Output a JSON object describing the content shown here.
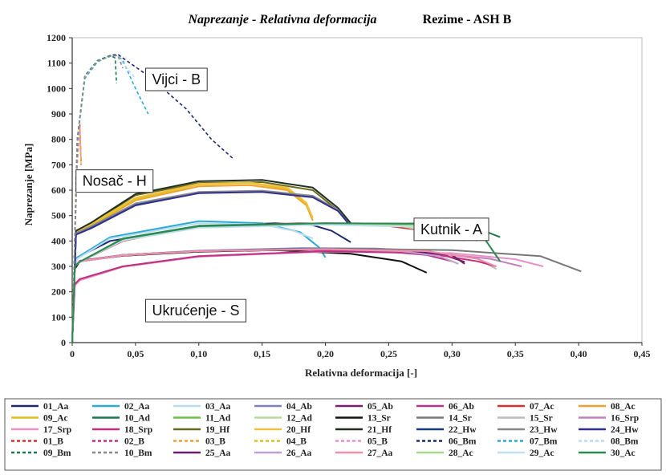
{
  "chart_data": {
    "type": "line",
    "title": "Naprezanje - Relativna deformacija",
    "subtitle": "Rezime - ASH B",
    "xlabel": "Relativna deformacija [-]",
    "ylabel": "Naprezanje [MPa]",
    "xlim": [
      0,
      0.45
    ],
    "ylim": [
      0,
      1200
    ],
    "x_ticks": [
      "0",
      "0,05",
      "0,10",
      "0,15",
      "0,20",
      "0,25",
      "0,30",
      "0,35",
      "0,40",
      "0,45"
    ],
    "y_ticks": [
      "0",
      "100",
      "200",
      "300",
      "400",
      "500",
      "600",
      "700",
      "800",
      "900",
      "1000",
      "1100",
      "1200"
    ],
    "grid": false,
    "legend_position": "bottom",
    "annotations": [
      {
        "text": "Vijci - B",
        "x": 0.058,
        "y": 1080
      },
      {
        "text": "Nosač - H",
        "x": 0.003,
        "y": 680
      },
      {
        "text": "Kutnik - A",
        "x": 0.27,
        "y": 490
      },
      {
        "text": "Ukrućenje - S",
        "x": 0.058,
        "y": 170
      }
    ],
    "series": [
      {
        "name": "01_Aa",
        "color": "#1f2a6e",
        "dash": false,
        "x": [
          0,
          0.002,
          0.004,
          0.03,
          0.1,
          0.16,
          0.19,
          0.205,
          0.22
        ],
        "y": [
          0,
          300,
          335,
          400,
          458,
          470,
          462,
          440,
          395
        ]
      },
      {
        "name": "02_Aa",
        "color": "#2aa8d8",
        "dash": false,
        "x": [
          0,
          0.002,
          0.004,
          0.03,
          0.1,
          0.15,
          0.18,
          0.195,
          0.2
        ],
        "y": [
          0,
          300,
          335,
          415,
          478,
          470,
          435,
          375,
          335
        ]
      },
      {
        "name": "03_Aa",
        "color": "#b9dcee",
        "dash": false,
        "x": [
          0,
          0.002,
          0.004,
          0.03,
          0.1,
          0.15,
          0.175,
          0.19
        ],
        "y": [
          0,
          300,
          330,
          410,
          470,
          465,
          440,
          410
        ]
      },
      {
        "name": "04_Ab",
        "color": "#7f7fc0",
        "dash": false,
        "x": [
          0,
          0.002,
          0.006,
          0.04,
          0.1,
          0.18,
          0.24,
          0.28,
          0.31
        ],
        "y": [
          0,
          300,
          320,
          345,
          362,
          372,
          370,
          360,
          338
        ]
      },
      {
        "name": "05_Ab",
        "color": "#7b1e6e",
        "dash": false,
        "x": [
          0,
          0.002,
          0.006,
          0.04,
          0.1,
          0.18,
          0.24,
          0.29,
          0.31
        ],
        "y": [
          0,
          300,
          322,
          345,
          360,
          368,
          365,
          350,
          318
        ]
      },
      {
        "name": "06_Ab",
        "color": "#b8338a",
        "dash": false,
        "x": [
          0,
          0.002,
          0.006,
          0.04,
          0.1,
          0.18,
          0.24,
          0.28,
          0.3
        ],
        "y": [
          0,
          300,
          322,
          342,
          358,
          366,
          362,
          345,
          320
        ]
      },
      {
        "name": "07_Ac",
        "color": "#d63030",
        "dash": false,
        "x": [
          0,
          0.002,
          0.006,
          0.04,
          0.1,
          0.18,
          0.24,
          0.28,
          0.305
        ],
        "y": [
          0,
          300,
          318,
          400,
          458,
          470,
          465,
          440,
          405
        ]
      },
      {
        "name": "08_Ac",
        "color": "#f0a030",
        "dash": false,
        "x": [
          0,
          0.003,
          0.015,
          0.05,
          0.1,
          0.14,
          0.17,
          0.185,
          0.19
        ],
        "y": [
          0,
          430,
          460,
          560,
          615,
          620,
          600,
          540,
          480
        ]
      },
      {
        "name": "09_Ac",
        "color": "#e0c020",
        "dash": false,
        "x": [
          0,
          0.003,
          0.015,
          0.05,
          0.1,
          0.14,
          0.17,
          0.185,
          0.19
        ],
        "y": [
          0,
          430,
          462,
          565,
          622,
          628,
          605,
          545,
          490
        ]
      },
      {
        "name": "10_Ad",
        "color": "#1a7a4a",
        "dash": false,
        "x": [
          0,
          0.002,
          0.006,
          0.04,
          0.1,
          0.2,
          0.28,
          0.32,
          0.338
        ],
        "y": [
          0,
          300,
          318,
          410,
          460,
          470,
          468,
          450,
          415
        ]
      },
      {
        "name": "11_Ad",
        "color": "#6cc24a",
        "dash": false,
        "x": [
          0,
          0.002,
          0.006,
          0.04,
          0.1,
          0.2,
          0.28,
          0.31,
          0.32
        ],
        "y": [
          0,
          300,
          318,
          408,
          458,
          468,
          462,
          440,
          400
        ]
      },
      {
        "name": "12_Ad",
        "color": "#b5d9a0",
        "dash": false,
        "x": [
          0,
          0.002,
          0.006,
          0.04,
          0.1,
          0.2,
          0.26,
          0.29,
          0.3
        ],
        "y": [
          0,
          300,
          318,
          405,
          455,
          465,
          458,
          430,
          405
        ]
      },
      {
        "name": "13_Sr",
        "color": "#111111",
        "dash": false,
        "x": [
          0,
          0.002,
          0.006,
          0.04,
          0.1,
          0.16,
          0.22,
          0.26,
          0.28
        ],
        "y": [
          0,
          290,
          320,
          342,
          358,
          364,
          350,
          320,
          275
        ]
      },
      {
        "name": "14_Sr",
        "color": "#777777",
        "dash": false,
        "x": [
          0,
          0.002,
          0.006,
          0.04,
          0.1,
          0.2,
          0.3,
          0.37,
          0.402
        ],
        "y": [
          0,
          300,
          320,
          345,
          360,
          370,
          364,
          340,
          280
        ]
      },
      {
        "name": "15_Sr",
        "color": "#bbbbbb",
        "dash": false,
        "x": [
          0,
          0.002,
          0.006,
          0.04,
          0.1,
          0.2,
          0.28,
          0.32,
          0.335
        ],
        "y": [
          0,
          300,
          320,
          343,
          360,
          368,
          360,
          330,
          290
        ]
      },
      {
        "name": "16_Srp",
        "color": "#c080c0",
        "dash": false,
        "x": [
          0,
          0.002,
          0.006,
          0.04,
          0.1,
          0.2,
          0.28,
          0.33,
          0.355
        ],
        "y": [
          0,
          230,
          250,
          300,
          340,
          360,
          355,
          330,
          300
        ]
      },
      {
        "name": "17_Srp",
        "color": "#e890c8",
        "dash": false,
        "x": [
          0,
          0.002,
          0.006,
          0.04,
          0.1,
          0.2,
          0.3,
          0.35,
          0.372
        ],
        "y": [
          0,
          225,
          245,
          298,
          338,
          358,
          352,
          328,
          300
        ]
      },
      {
        "name": "18_Srp",
        "color": "#c03080",
        "dash": false,
        "x": [
          0,
          0.002,
          0.006,
          0.04,
          0.1,
          0.2,
          0.28,
          0.32,
          0.335
        ],
        "y": [
          0,
          230,
          250,
          300,
          340,
          360,
          352,
          320,
          300
        ]
      },
      {
        "name": "19_Hf",
        "color": "#6a6a20",
        "dash": false,
        "x": [
          0,
          0.003,
          0.015,
          0.05,
          0.1,
          0.15,
          0.19,
          0.21,
          0.218
        ],
        "y": [
          0,
          440,
          470,
          580,
          628,
          632,
          600,
          520,
          470
        ]
      },
      {
        "name": "20_Hf",
        "color": "#f0c040",
        "dash": false,
        "x": [
          0,
          0.003,
          0.015,
          0.05,
          0.1,
          0.14,
          0.17,
          0.185,
          0.19
        ],
        "y": [
          0,
          435,
          468,
          570,
          625,
          630,
          610,
          550,
          490
        ]
      },
      {
        "name": "21_Hf",
        "color": "#203020",
        "dash": false,
        "x": [
          0,
          0.003,
          0.015,
          0.05,
          0.1,
          0.15,
          0.19,
          0.21,
          0.22
        ],
        "y": [
          0,
          440,
          472,
          585,
          635,
          640,
          610,
          530,
          470
        ]
      },
      {
        "name": "22_Hw",
        "color": "#1a3a7a",
        "dash": false,
        "x": [
          0,
          0.003,
          0.015,
          0.05,
          0.1,
          0.15,
          0.19,
          0.21,
          0.218
        ],
        "y": [
          0,
          430,
          455,
          545,
          590,
          595,
          575,
          520,
          470
        ]
      },
      {
        "name": "23_Hw",
        "color": "#888888",
        "dash": false,
        "x": [
          0,
          0.003,
          0.015,
          0.05,
          0.1,
          0.15,
          0.19,
          0.21,
          0.218
        ],
        "y": [
          0,
          430,
          458,
          548,
          593,
          598,
          578,
          522,
          470
        ]
      },
      {
        "name": "24_Hw",
        "color": "#303090",
        "dash": false,
        "x": [
          0,
          0.003,
          0.015,
          0.05,
          0.1,
          0.15,
          0.19,
          0.21,
          0.218
        ],
        "y": [
          0,
          425,
          450,
          540,
          588,
          593,
          572,
          518,
          470
        ]
      },
      {
        "name": "01_B",
        "color": "#d63030",
        "dash": true,
        "x": [
          0,
          0.002,
          0.004,
          0.006,
          0.007
        ],
        "y": [
          0,
          400,
          700,
          860,
          700
        ]
      },
      {
        "name": "02_B",
        "color": "#c03080",
        "dash": true,
        "x": [
          0,
          0.002,
          0.004,
          0.006,
          0.007
        ],
        "y": [
          0,
          420,
          720,
          840,
          720
        ]
      },
      {
        "name": "03_B",
        "color": "#f0a030",
        "dash": true,
        "x": [
          0,
          0.002,
          0.004,
          0.006,
          0.007
        ],
        "y": [
          0,
          410,
          710,
          850,
          710
        ]
      },
      {
        "name": "04_B",
        "color": "#e0c020",
        "dash": true,
        "x": [
          0,
          0.002,
          0.004,
          0.006,
          0.007
        ],
        "y": [
          0,
          405,
          705,
          830,
          705
        ]
      },
      {
        "name": "05_B",
        "color": "#e890c8",
        "dash": true,
        "x": [
          0,
          0.002,
          0.004,
          0.006,
          0.007
        ],
        "y": [
          0,
          415,
          715,
          845,
          715
        ]
      },
      {
        "name": "06_Bm",
        "color": "#1f2a6e",
        "dash": true,
        "x": [
          0,
          0.004,
          0.01,
          0.02,
          0.03,
          0.036,
          0.04,
          0.06,
          0.09,
          0.11,
          0.128
        ],
        "y": [
          0,
          800,
          1050,
          1110,
          1130,
          1135,
          1120,
          1050,
          920,
          800,
          720
        ]
      },
      {
        "name": "07_Bm",
        "color": "#2aa8d8",
        "dash": true,
        "x": [
          0,
          0.004,
          0.01,
          0.02,
          0.03,
          0.036,
          0.04,
          0.05,
          0.06
        ],
        "y": [
          0,
          790,
          1040,
          1105,
          1128,
          1130,
          1110,
          1000,
          900
        ]
      },
      {
        "name": "08_Bm",
        "color": "#b9dcee",
        "dash": true,
        "x": [
          0,
          0.004,
          0.01,
          0.02,
          0.03,
          0.036,
          0.04,
          0.05
        ],
        "y": [
          0,
          795,
          1045,
          1108,
          1126,
          1130,
          1100,
          1040
        ]
      },
      {
        "name": "09_Bm",
        "color": "#1a7a4a",
        "dash": true,
        "x": [
          0,
          0.004,
          0.01,
          0.02,
          0.03,
          0.034,
          0.035
        ],
        "y": [
          0,
          800,
          1050,
          1110,
          1130,
          1120,
          1020
        ]
      },
      {
        "name": "10_Bm",
        "color": "#888888",
        "dash": true,
        "x": [
          0,
          0.004,
          0.01,
          0.02,
          0.03,
          0.036,
          0.04
        ],
        "y": [
          0,
          800,
          1048,
          1108,
          1127,
          1130,
          1080
        ]
      },
      {
        "name": "25_Aa",
        "color": "#6a1e6e",
        "dash": false,
        "x": [
          0,
          0.002,
          0.006,
          0.04,
          0.1,
          0.2,
          0.26,
          0.3,
          0.31
        ],
        "y": [
          0,
          300,
          320,
          345,
          360,
          368,
          362,
          345,
          310
        ]
      },
      {
        "name": "26_Aa",
        "color": "#c0a0d0",
        "dash": false,
        "x": [
          0,
          0.002,
          0.006,
          0.04,
          0.1,
          0.2,
          0.26,
          0.29,
          0.305
        ],
        "y": [
          0,
          300,
          320,
          345,
          360,
          368,
          360,
          340,
          310
        ]
      },
      {
        "name": "27_Aa",
        "color": "#f090a8",
        "dash": false,
        "x": [
          0,
          0.002,
          0.006,
          0.04,
          0.1,
          0.2,
          0.28,
          0.32,
          0.335
        ],
        "y": [
          0,
          300,
          320,
          343,
          360,
          368,
          360,
          330,
          300
        ]
      },
      {
        "name": "28_Ac",
        "color": "#a8d890",
        "dash": false,
        "x": [
          0,
          0.002,
          0.006,
          0.04,
          0.1,
          0.2,
          0.28,
          0.31,
          0.32
        ],
        "y": [
          0,
          300,
          318,
          405,
          455,
          466,
          460,
          438,
          400
        ]
      },
      {
        "name": "29_Ac",
        "color": "#c0e0f0",
        "dash": false,
        "x": [
          0,
          0.002,
          0.006,
          0.04,
          0.1,
          0.2,
          0.27,
          0.3,
          0.31
        ],
        "y": [
          0,
          300,
          318,
          402,
          452,
          464,
          456,
          430,
          400
        ]
      },
      {
        "name": "30_Ac",
        "color": "#2a8a50",
        "dash": false,
        "x": [
          0,
          0.002,
          0.006,
          0.04,
          0.1,
          0.2,
          0.28,
          0.32,
          0.338
        ],
        "y": [
          0,
          300,
          318,
          408,
          458,
          470,
          468,
          450,
          320
        ]
      }
    ]
  }
}
